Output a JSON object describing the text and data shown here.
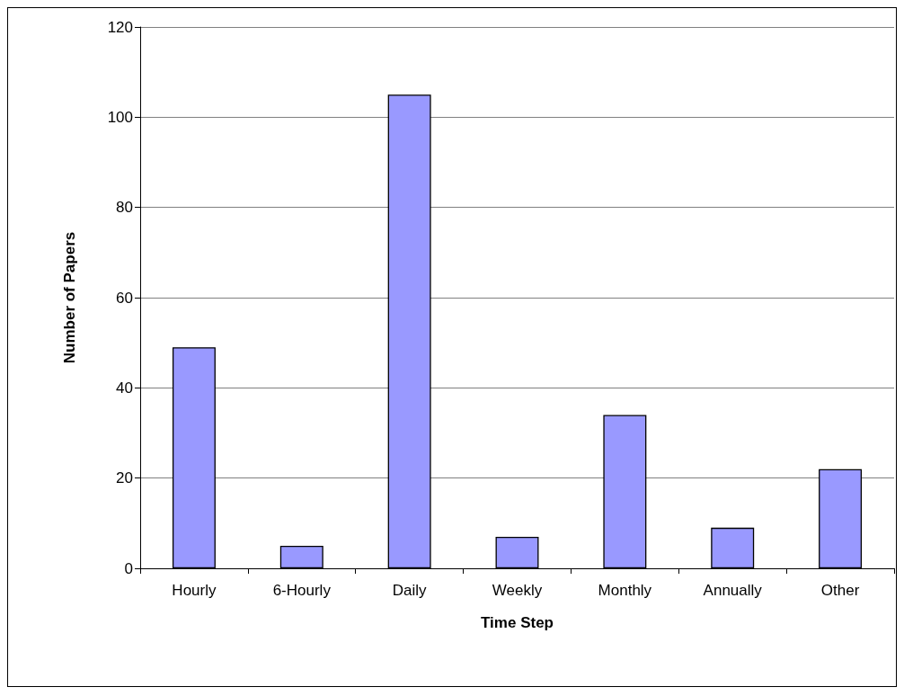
{
  "chart_data": {
    "type": "bar",
    "xlabel": "Time Step",
    "ylabel": "Number of Papers",
    "categories": [
      "Hourly",
      "6-Hourly",
      "Daily",
      "Weekly",
      "Monthly",
      "Annually",
      "Other"
    ],
    "values": [
      49,
      5,
      105,
      7,
      34,
      9,
      22
    ],
    "color": "#9999ff",
    "ylim": [
      0,
      120
    ],
    "yticks": [
      0,
      20,
      40,
      60,
      80,
      100,
      120
    ],
    "grid": "y"
  }
}
